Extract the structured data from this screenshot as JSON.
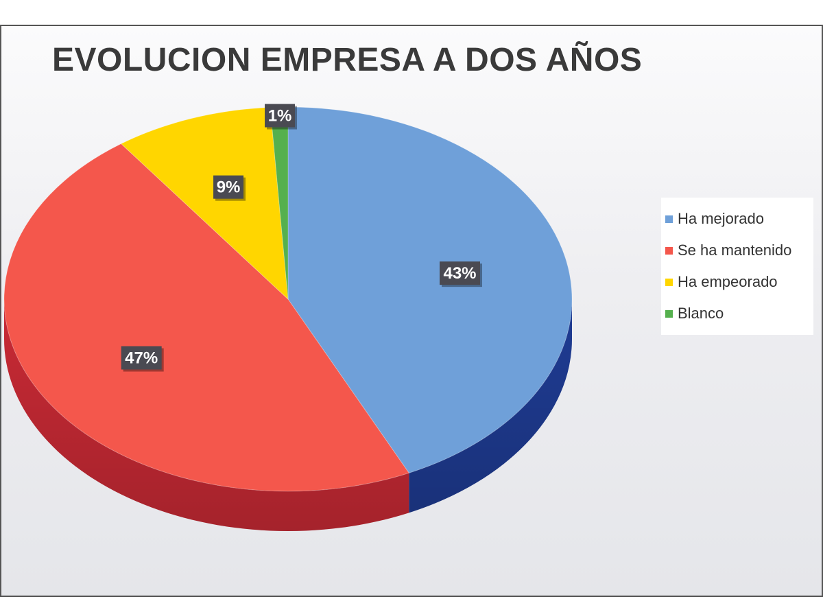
{
  "chart_data": {
    "type": "pie",
    "title": "EVOLUCION EMPRESA A DOS AÑOS",
    "categories": [
      "Ha mejorado",
      "Se ha mantenido",
      "Ha empeorado",
      "Blanco"
    ],
    "values": [
      43,
      47,
      9,
      1
    ],
    "data_labels": [
      "43%",
      "47%",
      "9%",
      "1%"
    ],
    "colors": {
      "top": [
        "#6fa0d9",
        "#f4574c",
        "#ffd600",
        "#55b04e"
      ],
      "side": [
        "#1f3c94",
        "#c92a35",
        "#c9a400",
        "#3a7d35"
      ]
    },
    "legend_position": "right",
    "style": "3d-pie"
  }
}
